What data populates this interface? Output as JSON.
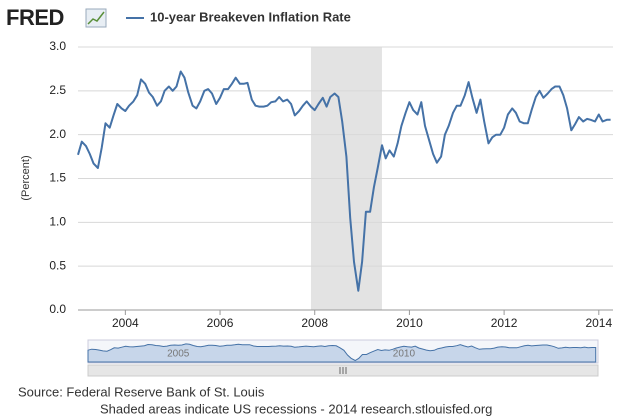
{
  "chart_data": {
    "type": "line",
    "logo": "FRED",
    "ylabel": "(Percent)",
    "series": [
      {
        "name": "10-year Breakeven Inflation Rate",
        "color": "#4572a7",
        "values": [
          1.77,
          1.92,
          1.87,
          1.78,
          1.67,
          1.62,
          1.85,
          2.13,
          2.08,
          2.22,
          2.35,
          2.3,
          2.27,
          2.33,
          2.38,
          2.45,
          2.63,
          2.58,
          2.48,
          2.43,
          2.33,
          2.38,
          2.5,
          2.55,
          2.5,
          2.55,
          2.72,
          2.65,
          2.48,
          2.33,
          2.3,
          2.38,
          2.5,
          2.52,
          2.47,
          2.35,
          2.42,
          2.52,
          2.52,
          2.58,
          2.65,
          2.58,
          2.58,
          2.59,
          2.4,
          2.33,
          2.32,
          2.32,
          2.33,
          2.37,
          2.38,
          2.43,
          2.38,
          2.4,
          2.35,
          2.22,
          2.27,
          2.33,
          2.38,
          2.32,
          2.28,
          2.35,
          2.42,
          2.32,
          2.43,
          2.47,
          2.43,
          2.15,
          1.75,
          1.05,
          0.55,
          0.22,
          0.55,
          1.12,
          1.12,
          1.4,
          1.62,
          1.88,
          1.73,
          1.82,
          1.75,
          1.9,
          2.1,
          2.25,
          2.37,
          2.28,
          2.23,
          2.37,
          2.1,
          1.93,
          1.78,
          1.68,
          1.75,
          2.0,
          2.1,
          2.25,
          2.33,
          2.33,
          2.45,
          2.6,
          2.42,
          2.25,
          2.4,
          2.15,
          1.9,
          1.97,
          2.0,
          2.0,
          2.08,
          2.23,
          2.3,
          2.25,
          2.15,
          2.13,
          2.13,
          2.28,
          2.43,
          2.5,
          2.42,
          2.47,
          2.52,
          2.55,
          2.55,
          2.45,
          2.3,
          2.05,
          2.12,
          2.2,
          2.15,
          2.18,
          2.17,
          2.15,
          2.23,
          2.15,
          2.17,
          2.17
        ]
      }
    ],
    "x": [
      2003.0,
      2003.08,
      2003.17,
      2003.25,
      2003.33,
      2003.42,
      2003.5,
      2003.58,
      2003.67,
      2003.75,
      2003.83,
      2003.92,
      2004.0,
      2004.08,
      2004.17,
      2004.25,
      2004.33,
      2004.42,
      2004.5,
      2004.58,
      2004.67,
      2004.75,
      2004.83,
      2004.92,
      2005.0,
      2005.08,
      2005.17,
      2005.25,
      2005.33,
      2005.42,
      2005.5,
      2005.58,
      2005.67,
      2005.75,
      2005.83,
      2005.92,
      2006.0,
      2006.08,
      2006.17,
      2006.25,
      2006.33,
      2006.42,
      2006.5,
      2006.58,
      2006.67,
      2006.75,
      2006.83,
      2006.92,
      2007.0,
      2007.08,
      2007.17,
      2007.25,
      2007.33,
      2007.42,
      2007.5,
      2007.58,
      2007.67,
      2007.75,
      2007.83,
      2007.92,
      2008.0,
      2008.08,
      2008.17,
      2008.25,
      2008.33,
      2008.42,
      2008.5,
      2008.58,
      2008.67,
      2008.75,
      2008.83,
      2008.92,
      2009.0,
      2009.08,
      2009.17,
      2009.25,
      2009.33,
      2009.42,
      2009.5,
      2009.58,
      2009.67,
      2009.75,
      2009.83,
      2009.92,
      2010.0,
      2010.08,
      2010.17,
      2010.25,
      2010.33,
      2010.42,
      2010.5,
      2010.58,
      2010.67,
      2010.75,
      2010.83,
      2010.92,
      2011.0,
      2011.08,
      2011.17,
      2011.25,
      2011.33,
      2011.42,
      2011.5,
      2011.58,
      2011.67,
      2011.75,
      2011.83,
      2011.92,
      2012.0,
      2012.08,
      2012.17,
      2012.25,
      2012.33,
      2012.42,
      2012.5,
      2012.58,
      2012.67,
      2012.75,
      2012.83,
      2012.92,
      2013.0,
      2013.08,
      2013.17,
      2013.25,
      2013.33,
      2013.42,
      2013.5,
      2013.58,
      2013.67,
      2013.75,
      2013.83,
      2013.92,
      2014.0,
      2014.08,
      2014.17,
      2014.25
    ],
    "xlim": [
      2003.0,
      2014.3
    ],
    "xticks": [
      2004,
      2006,
      2008,
      2010,
      2012,
      2014
    ],
    "ylim": [
      0,
      3
    ],
    "yticks": [
      {
        "value": 0,
        "label": "0.0"
      },
      {
        "value": 0.5,
        "label": "0.5"
      },
      {
        "value": 1,
        "label": "1.0"
      },
      {
        "value": 1.5,
        "label": "1.5"
      },
      {
        "value": 2,
        "label": "2.0"
      },
      {
        "value": 2.5,
        "label": "2.5"
      },
      {
        "value": 3,
        "label": "3.0"
      }
    ],
    "grid": true,
    "recessions": [
      [
        2007.92,
        2009.42
      ]
    ],
    "navigator_labels": [
      {
        "value": 2005,
        "label": "2005"
      },
      {
        "value": 2010,
        "label": "2010"
      }
    ],
    "source": "Source: Federal Reserve Bank of St. Louis",
    "footnote": "Shaded areas indicate US recessions - 2014 research.stlouisfed.org"
  }
}
